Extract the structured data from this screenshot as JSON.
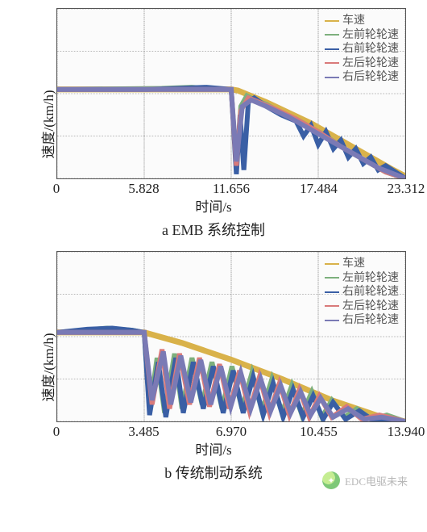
{
  "chart_a": {
    "type": "line",
    "ylabel": "速度/(km/h)",
    "xlabel": "时间/s",
    "caption": "a   EMB 系统控制",
    "ylim": [
      0,
      80
    ],
    "yticks": [
      0,
      80
    ],
    "xlim": [
      0,
      23.312
    ],
    "xticks": [
      0,
      5.828,
      11.656,
      17.484,
      23.312
    ],
    "xtick_labels": [
      "0",
      "5.828",
      "11.656",
      "17.484",
      "23.312"
    ],
    "y_grid": [
      0,
      20,
      40,
      60,
      80
    ],
    "x_grid": [
      0,
      5.828,
      11.656,
      17.484,
      23.312
    ],
    "grid_color": "#777",
    "axis_color": "#333",
    "background_color": "#fbfbfb",
    "legend": [
      {
        "label": "车速",
        "color": "#d9b24a"
      },
      {
        "label": "左前轮轮速",
        "color": "#7db07d"
      },
      {
        "label": "右前轮轮速",
        "color": "#3a5fa5"
      },
      {
        "label": "左后轮轮速",
        "color": "#d97a7a"
      },
      {
        "label": "右后轮轮速",
        "color": "#7a7ab5"
      }
    ],
    "series": [
      {
        "name": "vehicle",
        "color": "#d9b24a",
        "width": 1.2,
        "points": [
          [
            0,
            42
          ],
          [
            11.656,
            42
          ],
          [
            12.1,
            41.5
          ],
          [
            14,
            36
          ],
          [
            17,
            26
          ],
          [
            20,
            14
          ],
          [
            22.5,
            4
          ],
          [
            23.312,
            1
          ]
        ]
      },
      {
        "name": "lf",
        "color": "#7db07d",
        "width": 1.0,
        "points": [
          [
            0,
            42
          ],
          [
            7,
            42.5
          ],
          [
            9,
            43
          ],
          [
            11,
            42
          ],
          [
            11.656,
            42
          ],
          [
            12.0,
            5
          ],
          [
            12.3,
            34
          ],
          [
            12.7,
            39
          ],
          [
            13.2,
            37
          ],
          [
            14,
            35
          ],
          [
            15,
            31
          ],
          [
            16,
            28
          ],
          [
            17,
            24
          ],
          [
            18,
            20
          ],
          [
            19,
            15
          ],
          [
            20,
            11
          ],
          [
            21,
            7
          ],
          [
            22,
            3
          ],
          [
            23.312,
            0
          ]
        ]
      },
      {
        "name": "rf",
        "color": "#3a5fa5",
        "width": 1.0,
        "points": [
          [
            0,
            42
          ],
          [
            6,
            42
          ],
          [
            8,
            42.5
          ],
          [
            10,
            43
          ],
          [
            11.656,
            42
          ],
          [
            12.0,
            2
          ],
          [
            12.25,
            30
          ],
          [
            12.5,
            4
          ],
          [
            12.8,
            36
          ],
          [
            13.2,
            38
          ],
          [
            14,
            34
          ],
          [
            15,
            30
          ],
          [
            16,
            27
          ],
          [
            16.5,
            20
          ],
          [
            17,
            25
          ],
          [
            17.484,
            16
          ],
          [
            18,
            22
          ],
          [
            18.5,
            14
          ],
          [
            19,
            18
          ],
          [
            19.5,
            10
          ],
          [
            20,
            14
          ],
          [
            20.5,
            7
          ],
          [
            21,
            10
          ],
          [
            21.5,
            4
          ],
          [
            22,
            6
          ],
          [
            23.312,
            0
          ]
        ]
      },
      {
        "name": "lr",
        "color": "#d97a7a",
        "width": 1.0,
        "points": [
          [
            0,
            42
          ],
          [
            11.656,
            42
          ],
          [
            12.0,
            6
          ],
          [
            12.3,
            32
          ],
          [
            12.8,
            38
          ],
          [
            13.5,
            36
          ],
          [
            14.5,
            33
          ],
          [
            16,
            28
          ],
          [
            17.484,
            22
          ],
          [
            19,
            15
          ],
          [
            20.5,
            9
          ],
          [
            22,
            3
          ],
          [
            23.312,
            0
          ]
        ]
      },
      {
        "name": "rr",
        "color": "#7a7ab5",
        "width": 1.0,
        "points": [
          [
            0,
            42
          ],
          [
            11.656,
            42
          ],
          [
            12.0,
            8
          ],
          [
            12.4,
            34
          ],
          [
            13,
            37
          ],
          [
            14,
            34
          ],
          [
            15.5,
            29
          ],
          [
            17,
            23
          ],
          [
            18.5,
            17
          ],
          [
            20,
            11
          ],
          [
            21.5,
            5
          ],
          [
            23.312,
            0
          ]
        ]
      }
    ]
  },
  "chart_b": {
    "type": "line",
    "ylabel": "速度/(km/h)",
    "xlabel": "时间/s",
    "caption": "b   传统制动系统",
    "ylim": [
      0,
      80
    ],
    "yticks": [
      0,
      80
    ],
    "xlim": [
      0,
      13.94
    ],
    "xticks": [
      0,
      3.485,
      6.97,
      10.455,
      13.94
    ],
    "xtick_labels": [
      "0",
      "3.485",
      "6.970",
      "10.455",
      "13.940"
    ],
    "y_grid": [
      0,
      20,
      40,
      60,
      80
    ],
    "x_grid": [
      0,
      3.485,
      6.97,
      10.455,
      13.94
    ],
    "grid_color": "#777",
    "axis_color": "#333",
    "background_color": "#fbfbfb",
    "legend": [
      {
        "label": "车速",
        "color": "#d9b24a"
      },
      {
        "label": "左前轮轮速",
        "color": "#7db07d"
      },
      {
        "label": "右前轮轮速",
        "color": "#3a5fa5"
      },
      {
        "label": "左后轮轮速",
        "color": "#d97a7a"
      },
      {
        "label": "右后轮轮速",
        "color": "#7a7ab5"
      }
    ],
    "series": [
      {
        "name": "vehicle",
        "color": "#d9b24a",
        "width": 1.2,
        "points": [
          [
            0,
            42
          ],
          [
            3.485,
            42
          ],
          [
            5,
            37
          ],
          [
            7,
            29
          ],
          [
            9,
            20
          ],
          [
            11,
            10
          ],
          [
            13,
            2
          ],
          [
            13.94,
            0
          ]
        ]
      },
      {
        "name": "lf",
        "color": "#7db07d",
        "width": 1.0,
        "points": [
          [
            0,
            42
          ],
          [
            1,
            43
          ],
          [
            2,
            44
          ],
          [
            3,
            43
          ],
          [
            3.485,
            42
          ],
          [
            3.7,
            5
          ],
          [
            4.0,
            30
          ],
          [
            4.3,
            4
          ],
          [
            4.7,
            32
          ],
          [
            5.0,
            6
          ],
          [
            5.4,
            30
          ],
          [
            5.8,
            8
          ],
          [
            6.2,
            28
          ],
          [
            6.6,
            6
          ],
          [
            7.0,
            26
          ],
          [
            7.4,
            6
          ],
          [
            7.8,
            23
          ],
          [
            8.2,
            5
          ],
          [
            8.6,
            20
          ],
          [
            9.0,
            4
          ],
          [
            9.4,
            17
          ],
          [
            9.8,
            3
          ],
          [
            10.2,
            14
          ],
          [
            10.6,
            2
          ],
          [
            11.0,
            10
          ],
          [
            11.5,
            2
          ],
          [
            12,
            6
          ],
          [
            12.6,
            1
          ],
          [
            13.2,
            3
          ],
          [
            13.94,
            0
          ]
        ]
      },
      {
        "name": "rf",
        "color": "#3a5fa5",
        "width": 1.0,
        "points": [
          [
            0,
            42
          ],
          [
            1.2,
            43.5
          ],
          [
            2.2,
            44
          ],
          [
            3.0,
            43
          ],
          [
            3.485,
            42
          ],
          [
            3.7,
            3
          ],
          [
            4.05,
            28
          ],
          [
            4.35,
            2
          ],
          [
            4.75,
            30
          ],
          [
            5.05,
            4
          ],
          [
            5.45,
            28
          ],
          [
            5.85,
            6
          ],
          [
            6.25,
            26
          ],
          [
            6.65,
            4
          ],
          [
            7.05,
            24
          ],
          [
            7.45,
            4
          ],
          [
            7.85,
            21
          ],
          [
            8.25,
            3
          ],
          [
            8.65,
            18
          ],
          [
            9.05,
            2
          ],
          [
            9.45,
            15
          ],
          [
            9.85,
            2
          ],
          [
            10.25,
            12
          ],
          [
            10.65,
            1
          ],
          [
            11.05,
            9
          ],
          [
            11.55,
            1
          ],
          [
            12.1,
            5
          ],
          [
            12.7,
            0
          ],
          [
            13.94,
            0
          ]
        ]
      },
      {
        "name": "lr",
        "color": "#d97a7a",
        "width": 1.0,
        "points": [
          [
            0,
            42
          ],
          [
            3.485,
            42
          ],
          [
            3.8,
            8
          ],
          [
            4.2,
            34
          ],
          [
            4.5,
            6
          ],
          [
            4.9,
            32
          ],
          [
            5.3,
            8
          ],
          [
            5.7,
            30
          ],
          [
            6.1,
            7
          ],
          [
            6.5,
            27
          ],
          [
            6.9,
            6
          ],
          [
            7.3,
            24
          ],
          [
            7.7,
            5
          ],
          [
            8.1,
            21
          ],
          [
            8.5,
            4
          ],
          [
            8.9,
            18
          ],
          [
            9.3,
            3
          ],
          [
            9.7,
            15
          ],
          [
            10.1,
            2
          ],
          [
            10.5,
            12
          ],
          [
            11,
            2
          ],
          [
            11.6,
            7
          ],
          [
            12.2,
            1
          ],
          [
            12.9,
            3
          ],
          [
            13.94,
            0
          ]
        ]
      },
      {
        "name": "rr",
        "color": "#7a7ab5",
        "width": 1.0,
        "points": [
          [
            0,
            42
          ],
          [
            3.485,
            42
          ],
          [
            3.8,
            10
          ],
          [
            4.25,
            33
          ],
          [
            4.55,
            8
          ],
          [
            4.95,
            31
          ],
          [
            5.35,
            9
          ],
          [
            5.75,
            29
          ],
          [
            6.15,
            8
          ],
          [
            6.55,
            26
          ],
          [
            6.95,
            7
          ],
          [
            7.35,
            23
          ],
          [
            7.75,
            6
          ],
          [
            8.15,
            20
          ],
          [
            8.55,
            5
          ],
          [
            8.95,
            17
          ],
          [
            9.35,
            4
          ],
          [
            9.75,
            14
          ],
          [
            10.15,
            3
          ],
          [
            10.55,
            11
          ],
          [
            11.05,
            2
          ],
          [
            11.65,
            6
          ],
          [
            12.3,
            1
          ],
          [
            13.0,
            2
          ],
          [
            13.94,
            0
          ]
        ]
      }
    ]
  },
  "watermark": {
    "text": "EDC电驱未来"
  }
}
